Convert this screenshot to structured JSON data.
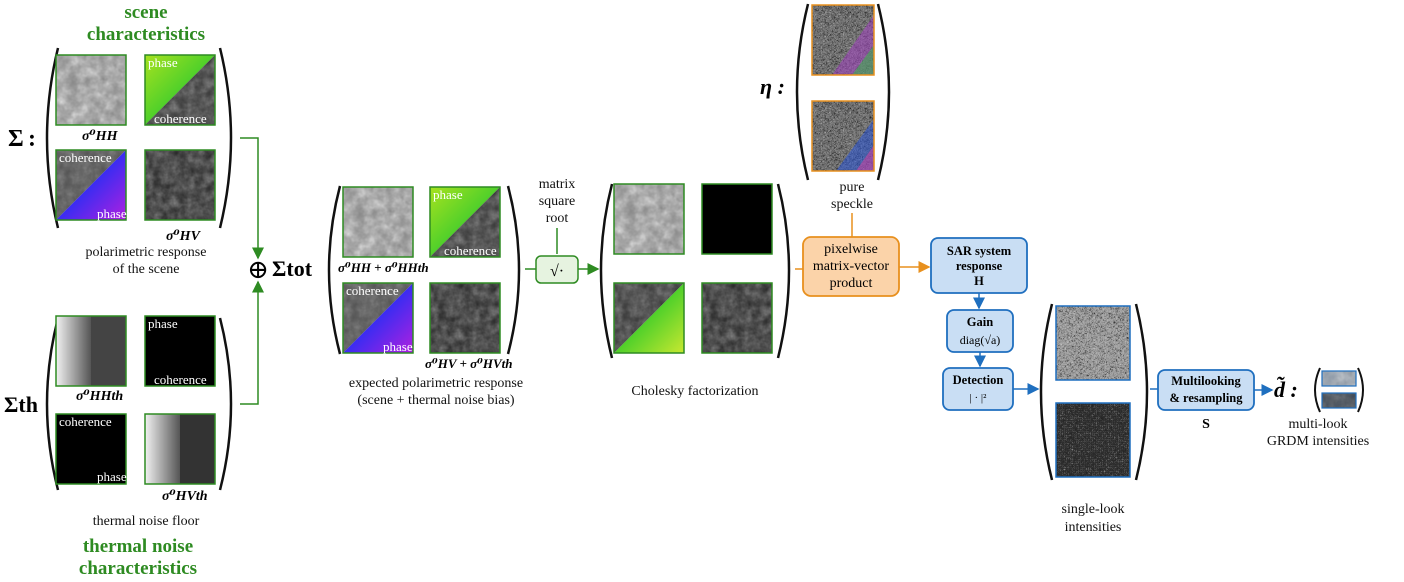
{
  "scene_title": "scene\ncharacteristics",
  "scene_title_line1": "scene",
  "scene_title_line2": "characteristics",
  "sigma_symbol": "Σ",
  "sigma_colon": ":",
  "sigma_hh_label": "σ⁰HH",
  "sigma_hv_label": "σ⁰HV",
  "scene_caption_1": "polarimetric response",
  "scene_caption_2": "of the scene",
  "phase_label": "phase",
  "coherence_label": "coherence",
  "oplus": "⊕",
  "sigma_th_symbol": "Σth",
  "thermal_hh_label": "σ⁰HHth",
  "thermal_hv_label": "σ⁰HVth",
  "thermal_caption": "thermal noise floor",
  "thermal_title_line1": "thermal noise",
  "thermal_title_line2": "characteristics",
  "sigma_tot_symbol": "Σtot",
  "tot_hh_label": "σ⁰HH + σ⁰HHth",
  "tot_hv_label": "σ⁰HV + σ⁰HVth",
  "tot_caption_1": "expected polarimetric response",
  "tot_caption_2": "(scene + thermal noise bias)",
  "sqrt_label_1": "matrix",
  "sqrt_label_2": "square",
  "sqrt_label_3": "root",
  "sqrt_symbol": "√·",
  "cholesky_caption": "Cholesky factorization",
  "eta_symbol": "η :",
  "speckle_caption_1": "pure",
  "speckle_caption_2": "speckle",
  "product_box_1": "pixelwise",
  "product_box_2": "matrix-vector",
  "product_box_3": "product",
  "sar_box_1": "SAR system",
  "sar_box_2": "response",
  "sar_box_3": "H",
  "gain_box_1": "Gain",
  "gain_box_2": "diag(√a)",
  "detection_box_1": "Detection",
  "detection_box_2": "| · |²",
  "singlelook_caption_1": "single-look",
  "singlelook_caption_2": "intensities",
  "multilook_box_1": "Multilooking",
  "multilook_box_2": "& resampling",
  "multilook_symbol": "S",
  "d_symbol": "d̃ :",
  "multilook_caption_1": "multi-look",
  "multilook_caption_2": "GRDM intensities",
  "colors": {
    "green": "#2e8b22",
    "orange": "#e8901e",
    "orange_fill": "#fbd3a9",
    "blue": "#1f6fbf",
    "blue_fill": "#c9def4"
  }
}
